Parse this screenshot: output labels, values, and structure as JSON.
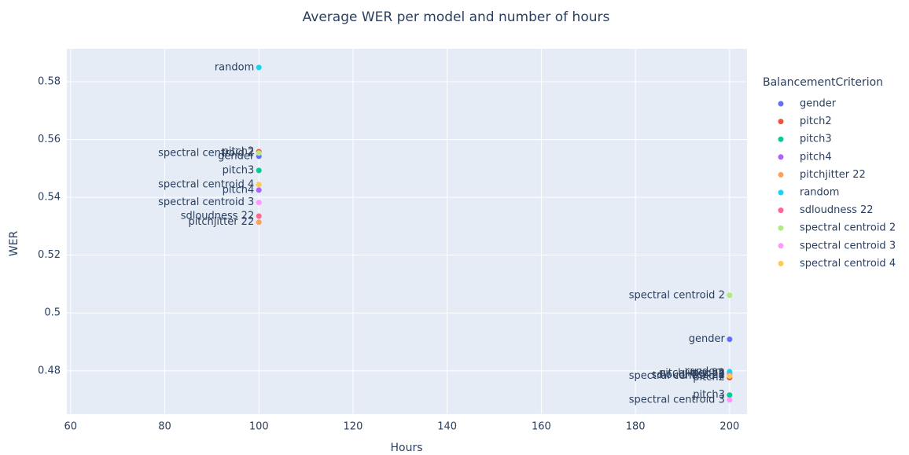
{
  "chart_data": {
    "type": "scatter",
    "title": "Average WER per model and number of hours",
    "xlabel": "Hours",
    "ylabel": "WER",
    "legend_title": "BalancementCriterion",
    "x": [
      100,
      200
    ],
    "series": [
      {
        "name": "gender",
        "color": "#636efa",
        "values": [
          0.5542,
          0.4909
        ]
      },
      {
        "name": "pitch2",
        "color": "#EF553B",
        "values": [
          0.5558,
          0.4776
        ]
      },
      {
        "name": "pitch3",
        "color": "#00cc96",
        "values": [
          0.5493,
          0.4716
        ]
      },
      {
        "name": "pitch4",
        "color": "#ab63fa",
        "values": [
          0.5425,
          0.479
        ]
      },
      {
        "name": "pitchjitter 22",
        "color": "#FFA15A",
        "values": [
          0.5314,
          0.4792
        ]
      },
      {
        "name": "random",
        "color": "#19d3f3",
        "values": [
          0.5849,
          0.4797
        ]
      },
      {
        "name": "sdloudness 22",
        "color": "#FF6692",
        "values": [
          0.5335,
          0.4784
        ]
      },
      {
        "name": "spectral centroid 2",
        "color": "#B6E880",
        "values": [
          0.5553,
          0.5061
        ]
      },
      {
        "name": "spectral centroid 3",
        "color": "#FF97FF",
        "values": [
          0.5382,
          0.4699
        ]
      },
      {
        "name": "spectral centroid 4",
        "color": "#FECB52",
        "values": [
          0.5444,
          0.4782
        ]
      }
    ],
    "xlim": [
      59.2,
      203.7
    ],
    "xticks": [
      60,
      80,
      100,
      120,
      140,
      160,
      180,
      200
    ],
    "ylim": [
      0.465,
      0.5914
    ],
    "yticks": [
      0.48,
      0.5,
      0.52,
      0.54,
      0.56,
      0.58
    ],
    "grid": true,
    "legend": "right"
  }
}
